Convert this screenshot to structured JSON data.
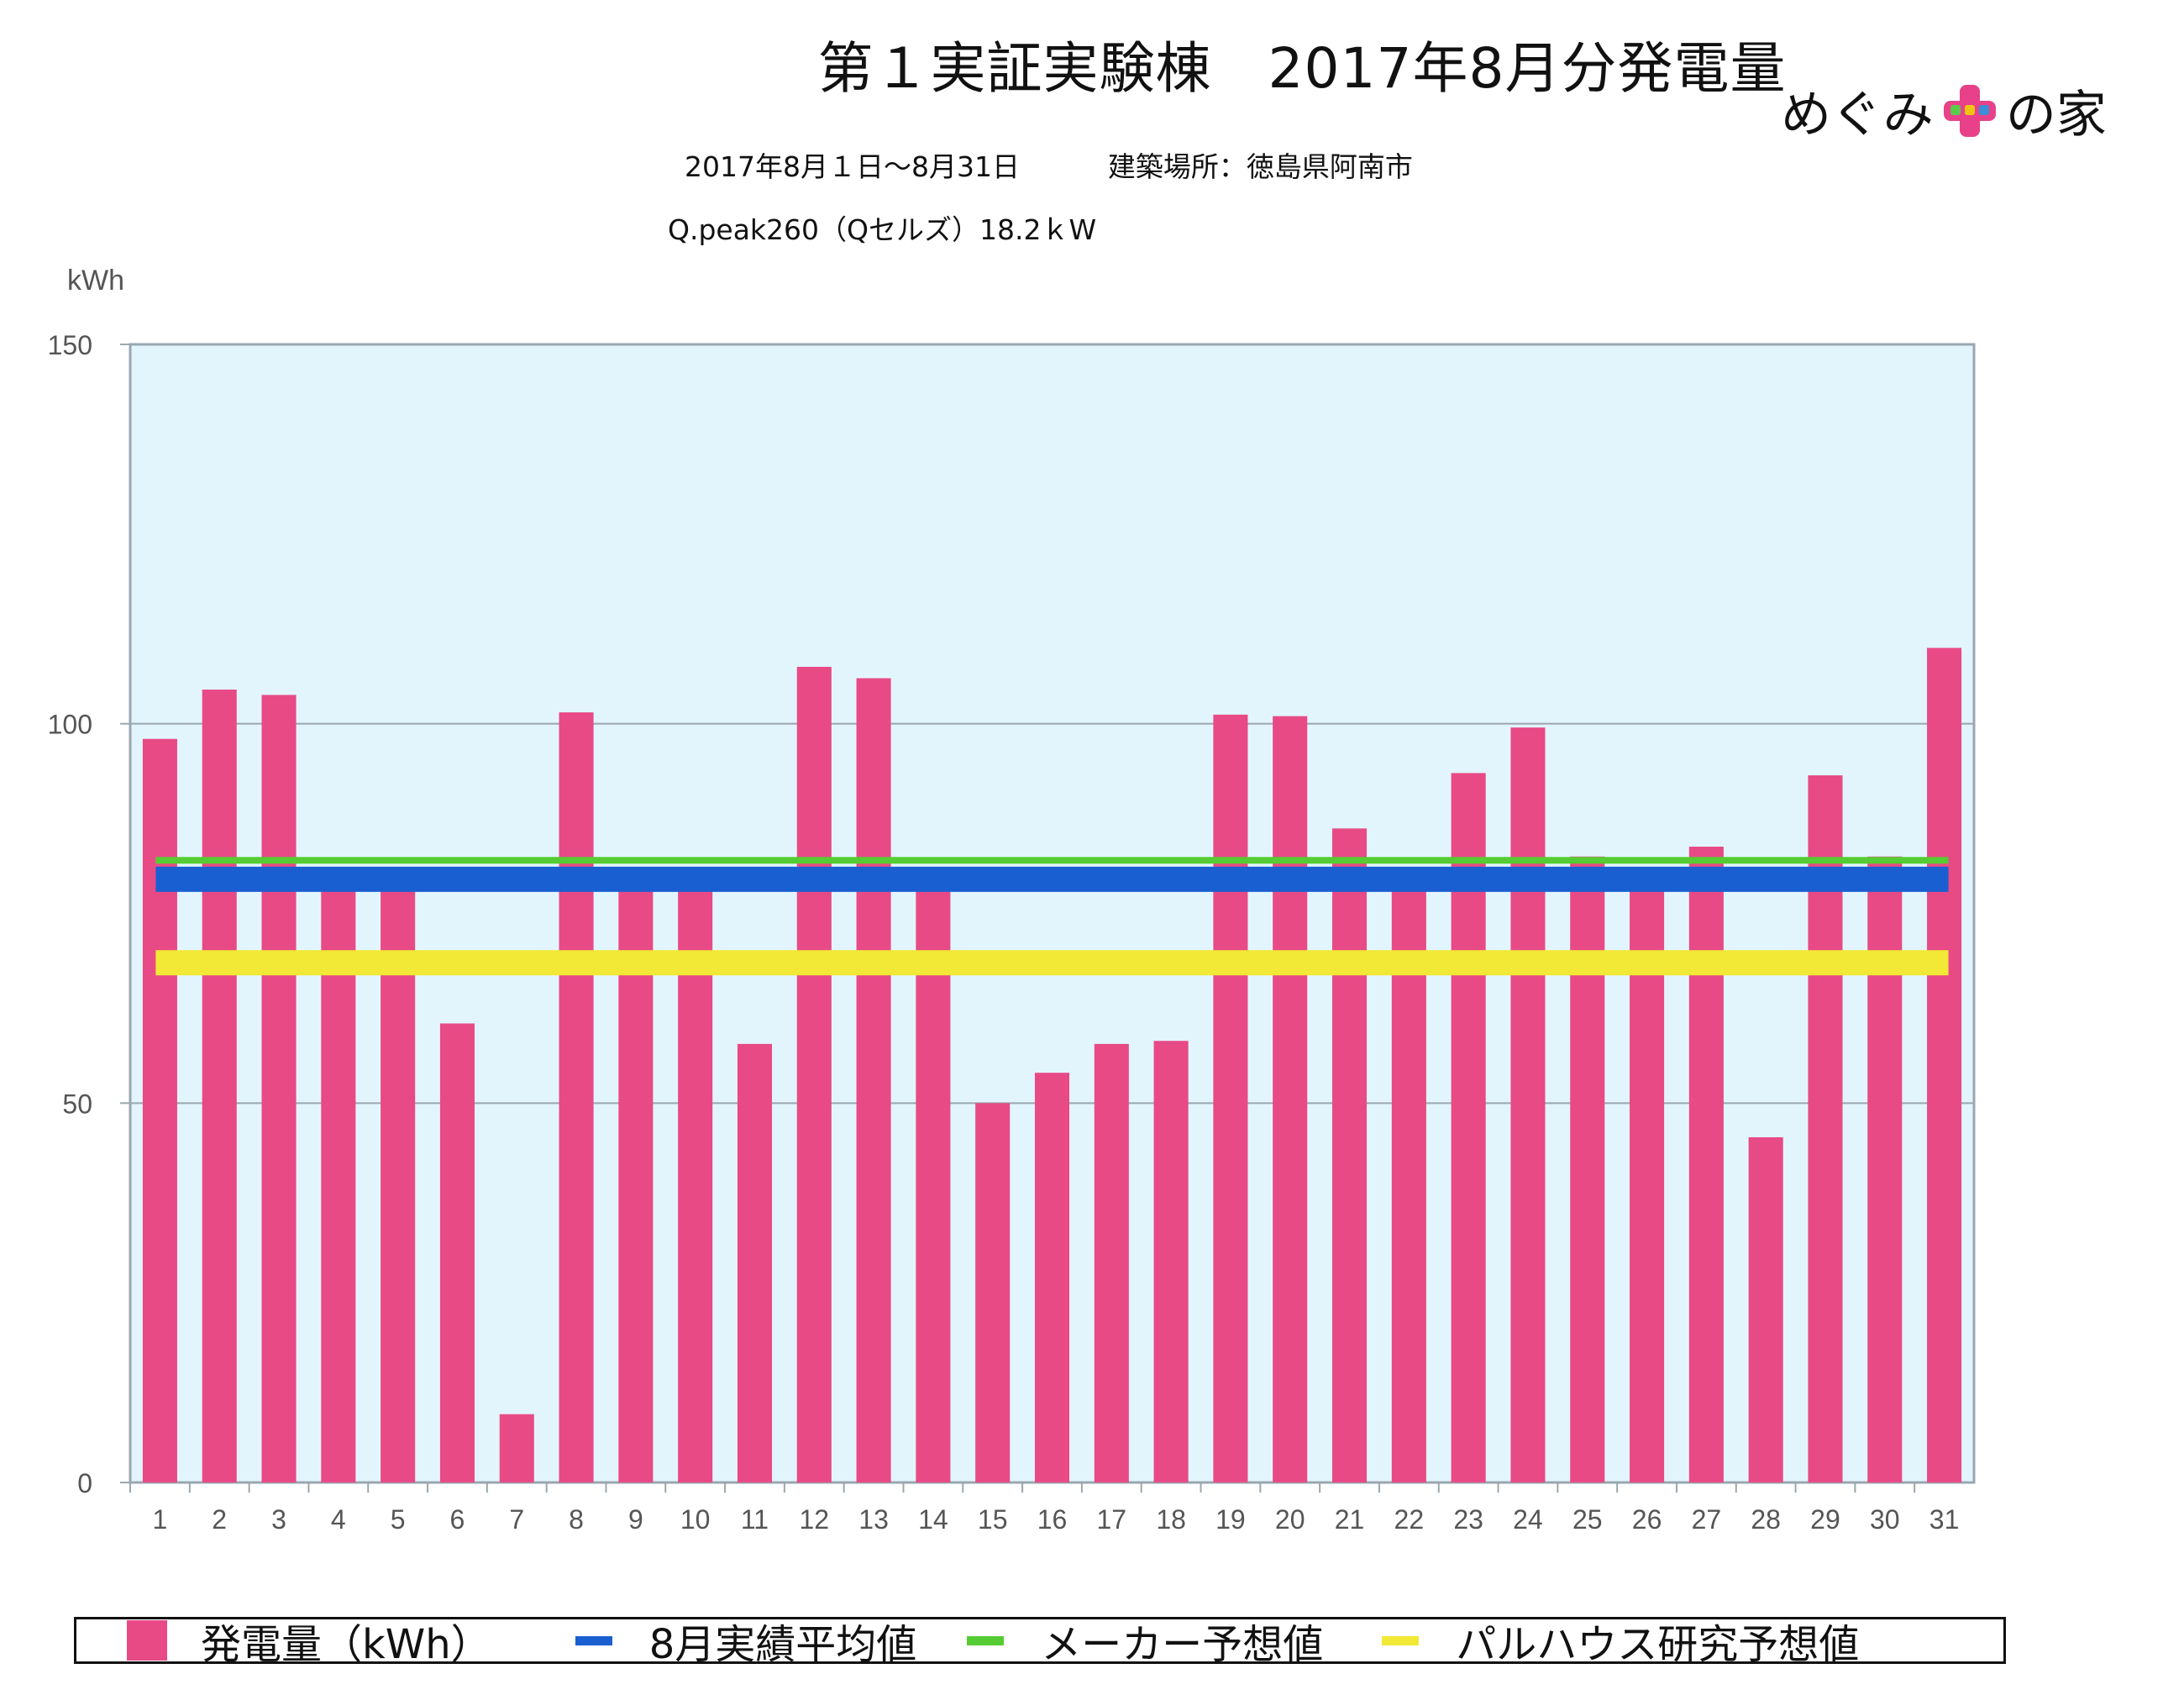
{
  "header": {
    "title": "第１実証実験棟　2017年8月分発電量",
    "subtitle_period_and_site": "2017年8月１日〜8月31日          建築場所：徳島県阿南市",
    "subtitle_system": "Q.peak260（Qセルズ）18.2ｋW"
  },
  "logo": {
    "text_left": "めぐみ",
    "text_right": "の家",
    "plus_icon": "plus-icon",
    "plus_color": "#e8418a"
  },
  "chart_data": {
    "type": "bar",
    "ylabel": "kWh",
    "ylim": [
      0,
      150
    ],
    "yticks": [
      "0",
      "50",
      "100",
      "150"
    ],
    "categories": [
      "1",
      "2",
      "3",
      "4",
      "5",
      "6",
      "7",
      "8",
      "9",
      "10",
      "11",
      "12",
      "13",
      "14",
      "15",
      "16",
      "17",
      "18",
      "19",
      "20",
      "21",
      "22",
      "23",
      "24",
      "25",
      "26",
      "27",
      "28",
      "29",
      "30",
      "31"
    ],
    "series": [
      {
        "name": "発電量（kWh）",
        "color": "#e84a86",
        "values": [
          98,
          104.5,
          103.8,
          78,
          79,
          60.5,
          9,
          101.5,
          80,
          80,
          57.8,
          107.5,
          106,
          80,
          50,
          54,
          57.8,
          58.2,
          101.2,
          101,
          86.2,
          80,
          93.5,
          99.5,
          82.5,
          79.5,
          83.8,
          45.5,
          93.2,
          82.5,
          110
        ]
      }
    ],
    "reference_lines": [
      {
        "name": "8月実績平均値",
        "value": 79.5,
        "color": "#1a5fd1"
      },
      {
        "name": "メーカー予想値",
        "value": 82,
        "color": "#55cc33"
      },
      {
        "name": "パルハウス研究予想値",
        "value": 68.5,
        "color": "#f2e836"
      }
    ],
    "plot_background": "#e2f5fd",
    "grid": true,
    "legend_position": "bottom"
  },
  "legend": {
    "items": [
      {
        "label": "発電量（kWh）",
        "color": "#e84a86",
        "kind": "box"
      },
      {
        "label": "8月実績平均値",
        "color": "#1a5fd1",
        "kind": "line"
      },
      {
        "label": "メーカー予想値",
        "color": "#55cc33",
        "kind": "line"
      },
      {
        "label": "パルハウス研究予想値",
        "color": "#f2e836",
        "kind": "line"
      }
    ]
  }
}
